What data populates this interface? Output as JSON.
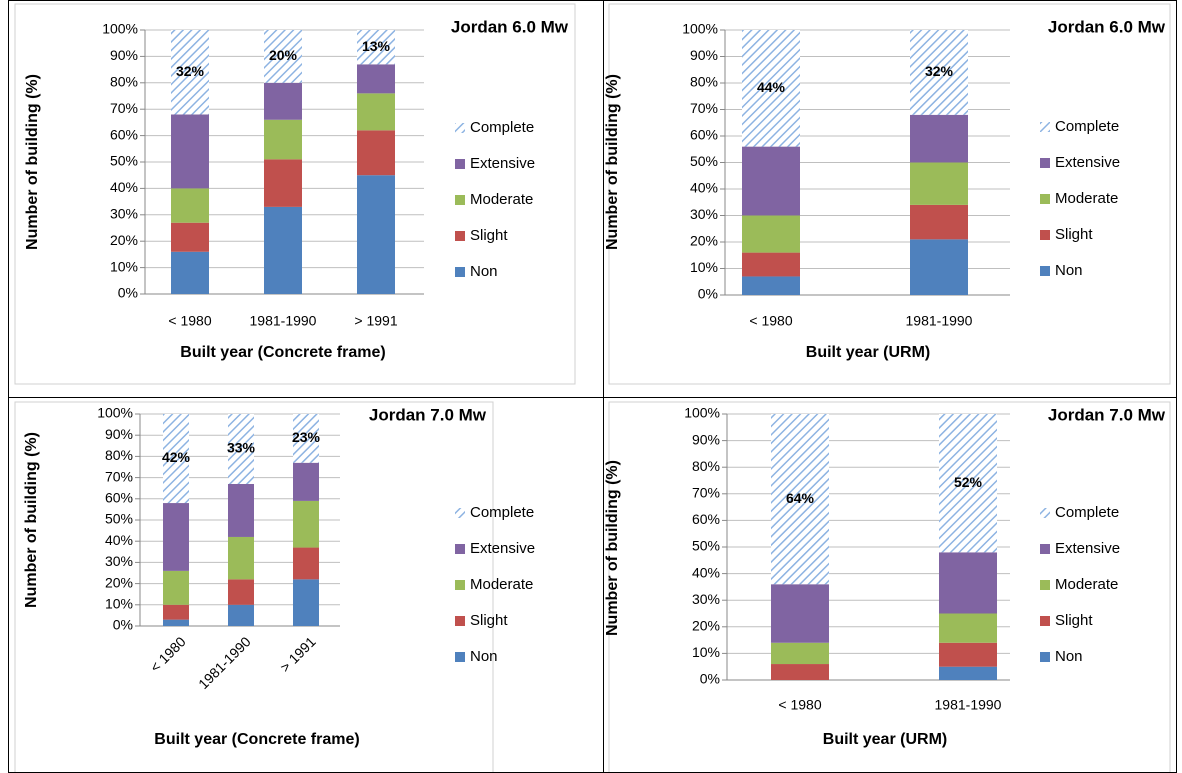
{
  "chart_data": [
    {
      "type": "bar",
      "stacked": true,
      "title": "Jordan 6.0 Mw",
      "x_label": "Built year (Concrete frame)",
      "y_label": "Number of building (%)",
      "categories": [
        "< 1980",
        "1981-1990",
        "> 1991"
      ],
      "series": [
        {
          "name": "Non",
          "color": "#4f81bd",
          "values": [
            16,
            33,
            45
          ]
        },
        {
          "name": "Slight",
          "color": "#c0504d",
          "values": [
            11,
            18,
            17
          ]
        },
        {
          "name": "Moderate",
          "color": "#9bbb59",
          "values": [
            13,
            15,
            14
          ]
        },
        {
          "name": "Extensive",
          "color": "#8064a2",
          "values": [
            28,
            14,
            11
          ]
        },
        {
          "name": "Complete",
          "color": "#8db3e2",
          "hatch": true,
          "values": [
            32,
            20,
            13
          ],
          "value_labels": [
            "32%",
            "20%",
            "13%"
          ]
        }
      ],
      "ylim": [
        0,
        100
      ],
      "yticks": [
        {
          "value": 0,
          "label": "0%"
        },
        {
          "value": 10,
          "label": "10%"
        },
        {
          "value": 20,
          "label": "20%"
        },
        {
          "value": 30,
          "label": "30%"
        },
        {
          "value": 40,
          "label": "40%"
        },
        {
          "value": 50,
          "label": "50%"
        },
        {
          "value": 60,
          "label": "60%"
        },
        {
          "value": 70,
          "label": "70%"
        },
        {
          "value": 80,
          "label": "80%"
        },
        {
          "value": 90,
          "label": "90%"
        },
        {
          "value": 100,
          "label": "100%"
        }
      ],
      "grid": true,
      "legend": "right"
    },
    {
      "type": "bar",
      "stacked": true,
      "title": "Jordan 6.0 Mw",
      "x_label": "Built year (URM)",
      "y_label": "Number of building (%)",
      "categories": [
        "< 1980",
        "1981-1990"
      ],
      "series": [
        {
          "name": "Non",
          "color": "#4f81bd",
          "values": [
            7,
            21
          ]
        },
        {
          "name": "Slight",
          "color": "#c0504d",
          "values": [
            9,
            13
          ]
        },
        {
          "name": "Moderate",
          "color": "#9bbb59",
          "values": [
            14,
            16
          ]
        },
        {
          "name": "Extensive",
          "color": "#8064a2",
          "values": [
            26,
            18
          ]
        },
        {
          "name": "Complete",
          "color": "#8db3e2",
          "hatch": true,
          "values": [
            44,
            32
          ],
          "value_labels": [
            "44%",
            "32%"
          ]
        }
      ],
      "ylim": [
        0,
        100
      ],
      "yticks": [
        {
          "value": 0,
          "label": "0%"
        },
        {
          "value": 10,
          "label": "10%"
        },
        {
          "value": 20,
          "label": "20%"
        },
        {
          "value": 30,
          "label": "30%"
        },
        {
          "value": 40,
          "label": "40%"
        },
        {
          "value": 50,
          "label": "50%"
        },
        {
          "value": 60,
          "label": "60%"
        },
        {
          "value": 70,
          "label": "70%"
        },
        {
          "value": 80,
          "label": "80%"
        },
        {
          "value": 90,
          "label": "90%"
        },
        {
          "value": 100,
          "label": "100%"
        }
      ],
      "grid": true,
      "legend": "right"
    },
    {
      "type": "bar",
      "stacked": true,
      "title": "Jordan 7.0 Mw",
      "x_label": "Built year (Concrete frame)",
      "y_label": "Number of building (%)",
      "categories": [
        "< 1980",
        "1981-1990",
        "> 1991"
      ],
      "xtick_rotation": -45,
      "series": [
        {
          "name": "Non",
          "color": "#4f81bd",
          "values": [
            3,
            10,
            22
          ]
        },
        {
          "name": "Slight",
          "color": "#c0504d",
          "values": [
            7,
            12,
            15
          ]
        },
        {
          "name": "Moderate",
          "color": "#9bbb59",
          "values": [
            16,
            20,
            22
          ]
        },
        {
          "name": "Extensive",
          "color": "#8064a2",
          "values": [
            32,
            25,
            18
          ]
        },
        {
          "name": "Complete",
          "color": "#8db3e2",
          "hatch": true,
          "values": [
            42,
            33,
            23
          ],
          "value_labels": [
            "42%",
            "33%",
            "23%"
          ]
        }
      ],
      "ylim": [
        0,
        100
      ],
      "yticks": [
        {
          "value": 0,
          "label": "0%"
        },
        {
          "value": 10,
          "label": "10%"
        },
        {
          "value": 20,
          "label": "20%"
        },
        {
          "value": 30,
          "label": "30%"
        },
        {
          "value": 40,
          "label": "40%"
        },
        {
          "value": 50,
          "label": "50%"
        },
        {
          "value": 60,
          "label": "60%"
        },
        {
          "value": 70,
          "label": "70%"
        },
        {
          "value": 80,
          "label": "80%"
        },
        {
          "value": 90,
          "label": "90%"
        },
        {
          "value": 100,
          "label": "100%"
        }
      ],
      "grid": true,
      "legend": "right"
    },
    {
      "type": "bar",
      "stacked": true,
      "title": "Jordan 7.0 Mw",
      "x_label": "Built year (URM)",
      "y_label": "Number of building (%)",
      "categories": [
        "< 1980",
        "1981-1990"
      ],
      "series": [
        {
          "name": "Non",
          "color": "#4f81bd",
          "values": [
            0,
            5
          ]
        },
        {
          "name": "Slight",
          "color": "#c0504d",
          "values": [
            6,
            9
          ]
        },
        {
          "name": "Moderate",
          "color": "#9bbb59",
          "values": [
            8,
            11
          ]
        },
        {
          "name": "Extensive",
          "color": "#8064a2",
          "values": [
            22,
            23
          ]
        },
        {
          "name": "Complete",
          "color": "#8db3e2",
          "hatch": true,
          "values": [
            64,
            52
          ],
          "value_labels": [
            "64%",
            "52%"
          ]
        }
      ],
      "ylim": [
        0,
        100
      ],
      "yticks": [
        {
          "value": 0,
          "label": "0%"
        },
        {
          "value": 10,
          "label": "10%"
        },
        {
          "value": 20,
          "label": "20%"
        },
        {
          "value": 30,
          "label": "30%"
        },
        {
          "value": 40,
          "label": "40%"
        },
        {
          "value": 50,
          "label": "50%"
        },
        {
          "value": 60,
          "label": "60%"
        },
        {
          "value": 70,
          "label": "70%"
        },
        {
          "value": 80,
          "label": "80%"
        },
        {
          "value": 90,
          "label": "90%"
        },
        {
          "value": 100,
          "label": "100%"
        }
      ],
      "grid": true,
      "legend": "right"
    }
  ]
}
